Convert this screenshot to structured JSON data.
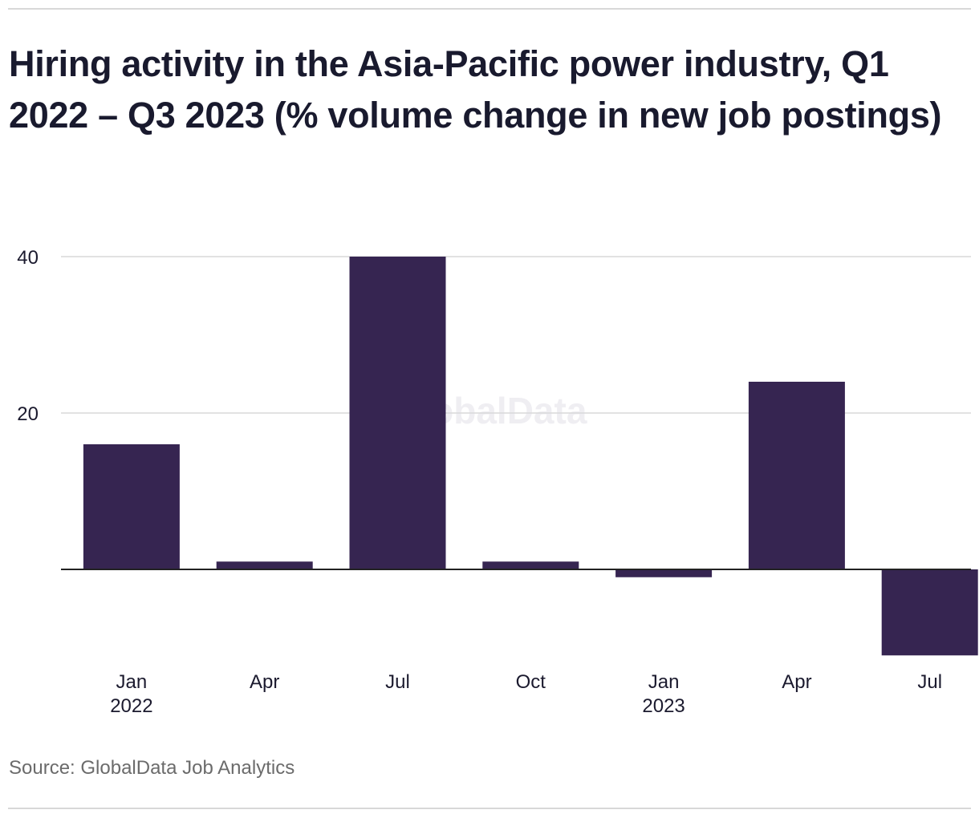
{
  "header": {
    "title": "Hiring activity in the Asia-Pacific power industry, Q1 2022 – Q3 2023 (% volume change in new job postings)"
  },
  "footer": {
    "source": "Source: GlobalData Job Analytics"
  },
  "watermark": "GlobalData",
  "colors": {
    "bar": "#362551",
    "grid": "#d9d9d9",
    "zero_line": "#222222",
    "text": "#1b1a2e",
    "watermark": "#efeef2"
  },
  "chart_data": {
    "type": "bar",
    "categories": [
      "Jan 2022",
      "Apr",
      "Jul",
      "Oct",
      "Jan 2023",
      "Apr",
      "Jul"
    ],
    "tick_labels": [
      [
        "Jan",
        "2022"
      ],
      [
        "Apr"
      ],
      [
        "Jul"
      ],
      [
        "Oct"
      ],
      [
        "Jan",
        "2023"
      ],
      [
        "Apr"
      ],
      [
        "Jul"
      ]
    ],
    "values": [
      16,
      1,
      40,
      1,
      -1,
      24,
      -11
    ],
    "ylim": [
      -11,
      40
    ],
    "yticks": [
      20,
      40
    ],
    "grid": true,
    "legend": "none",
    "title": "Hiring activity in the Asia-Pacific power industry, Q1 2022 – Q3 2023 (% volume change in new job postings)",
    "xlabel": "",
    "ylabel": ""
  }
}
